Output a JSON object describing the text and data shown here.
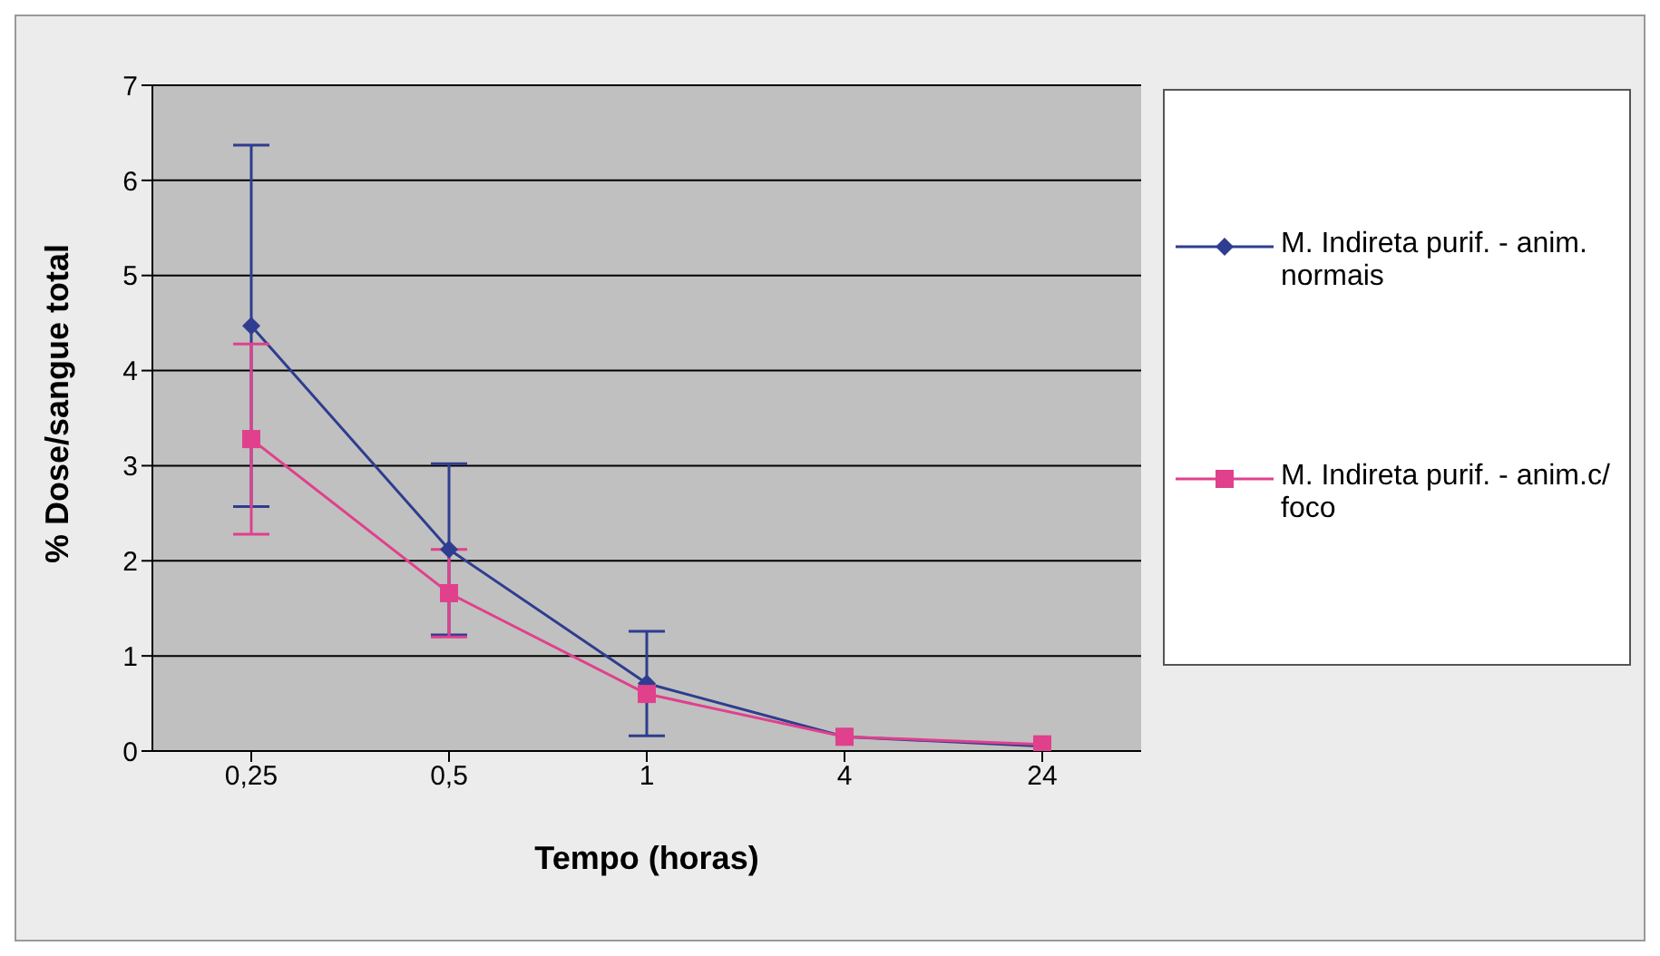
{
  "chart_data": {
    "type": "line",
    "xlabel": "Tempo (horas)",
    "ylabel": "% Dose/sangue total",
    "categories": [
      "0,25",
      "0,5",
      "1",
      "4",
      "24"
    ],
    "series": [
      {
        "name": "M. Indireta purif. - anim. normais",
        "color": "#2e3d8f",
        "marker": "diamond",
        "values": [
          4.47,
          2.12,
          0.71,
          0.15,
          0.05
        ],
        "errors": [
          1.9,
          0.9,
          0.55,
          null,
          null
        ]
      },
      {
        "name": "M. Indireta purif. - anim.c/ foco",
        "color": "#e0408c",
        "marker": "square",
        "values": [
          3.28,
          1.66,
          0.6,
          0.15,
          0.07
        ],
        "errors": [
          1.0,
          0.46,
          null,
          null,
          null
        ]
      }
    ],
    "ylim": [
      0,
      7
    ],
    "yticks": [
      0,
      1,
      2,
      3,
      4,
      5,
      6,
      7
    ],
    "grid": "y",
    "legend": "right"
  }
}
